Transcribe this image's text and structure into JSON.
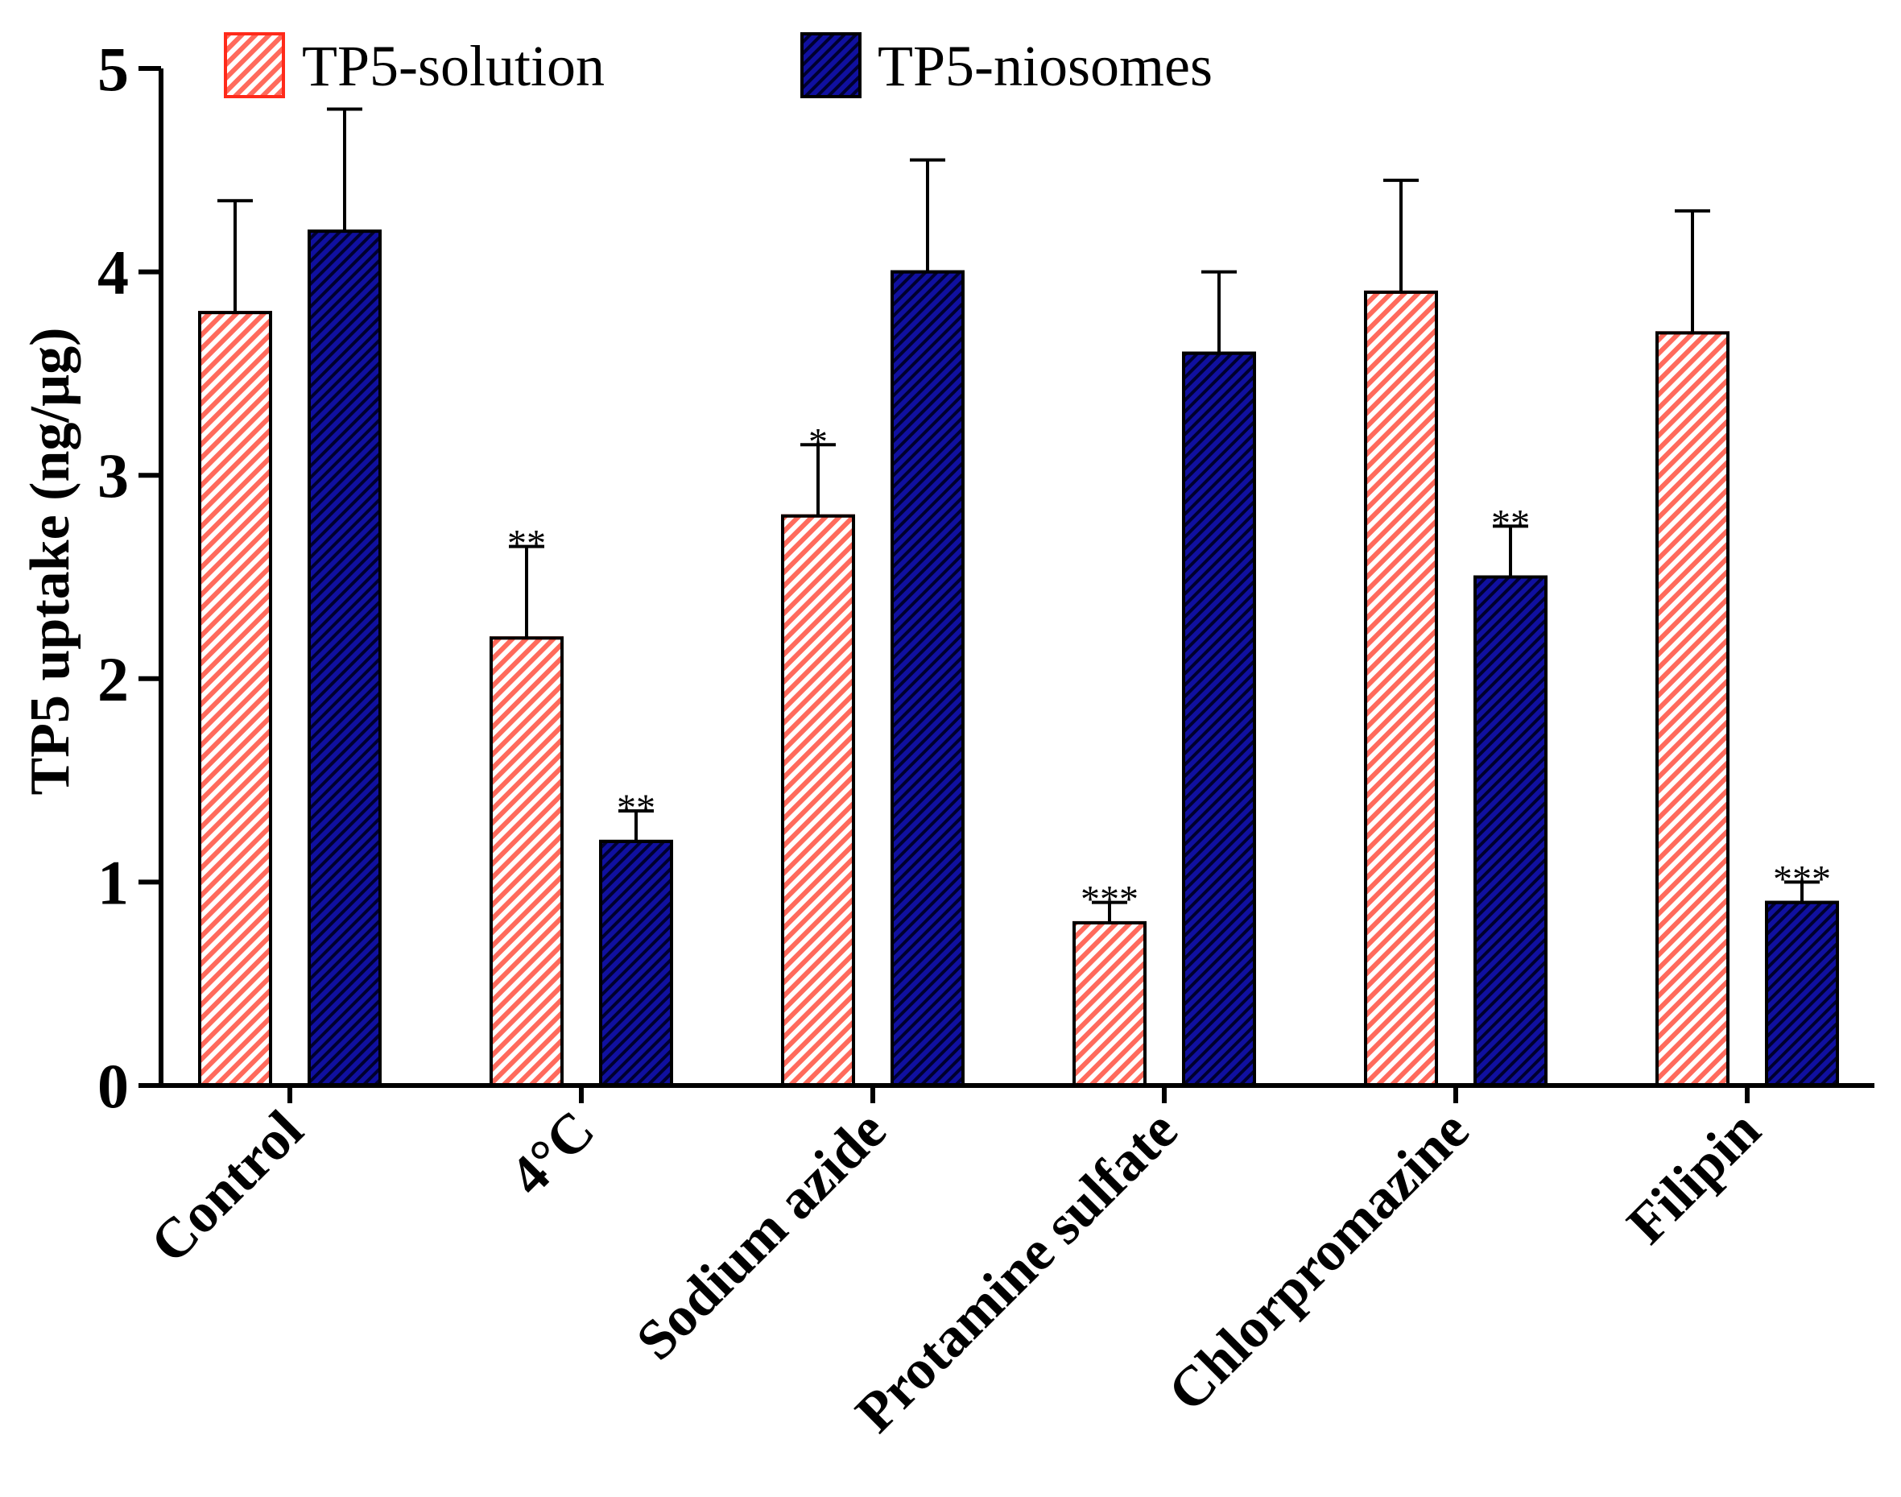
{
  "chart_data": {
    "type": "bar",
    "title": "",
    "xlabel": "",
    "ylabel": "TP5 uptake (ng/µg)",
    "ylim": [
      0,
      5
    ],
    "yticks": [
      0,
      1,
      2,
      3,
      4,
      5
    ],
    "categories": [
      "Control",
      "4°C",
      "Sodium azide",
      "Protamine sulfate",
      "Chlorpromazine",
      "Filipin"
    ],
    "series": [
      {
        "name": "TP5-solution",
        "values": [
          3.8,
          2.2,
          2.8,
          0.8,
          3.9,
          3.7
        ],
        "errors": [
          0.55,
          0.45,
          0.35,
          0.1,
          0.55,
          0.6
        ],
        "significance": [
          "",
          "**",
          "*",
          "***",
          "",
          ""
        ],
        "fill": "#ff8c80",
        "stroke": "#ff2a1a"
      },
      {
        "name": "TP5-niosomes",
        "values": [
          4.2,
          1.2,
          4.0,
          3.6,
          2.5,
          0.9
        ],
        "errors": [
          0.6,
          0.15,
          0.55,
          0.4,
          0.25,
          0.1
        ],
        "significance": [
          "",
          "**",
          "",
          "",
          "**",
          "***"
        ],
        "fill": "#0a0a8c",
        "stroke": "#000000"
      }
    ],
    "legend": "top",
    "grid": false,
    "error_bars": "upper"
  }
}
